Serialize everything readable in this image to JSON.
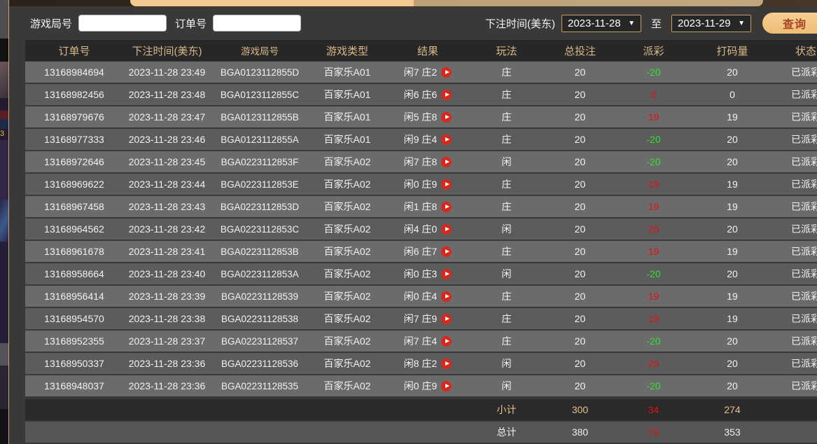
{
  "filters": {
    "game_round_label": "游戏局号",
    "game_round_value": "",
    "order_label": "订单号",
    "order_value": "",
    "bet_time_label": "下注时间(美东)",
    "date_from": "2023-11-28",
    "date_to": "2023-11-29",
    "to_label": "至",
    "query_button_label": "查询",
    "dropdown_arrow": "▼"
  },
  "table": {
    "headers": [
      "订单号",
      "下注时间(美东)",
      "游戏局号",
      "游戏类型",
      "结果",
      "玩法",
      "总投注",
      "派彩",
      "打码量",
      "状态"
    ],
    "rows": [
      {
        "order": "13168984694",
        "time": "2023-11-28 23:49",
        "round": "BGA0123112855D",
        "type": "百家乐A01",
        "result": "闲7 庄2",
        "play": "庄",
        "bet": "20",
        "payout": "-20",
        "wager": "20",
        "status": "已派彩"
      },
      {
        "order": "13168982456",
        "time": "2023-11-28 23:48",
        "round": "BGA0123112855C",
        "type": "百家乐A01",
        "result": "闲6 庄6",
        "play": "庄",
        "bet": "20",
        "payout": "0",
        "wager": "0",
        "status": "已派彩"
      },
      {
        "order": "13168979676",
        "time": "2023-11-28 23:47",
        "round": "BGA0123112855B",
        "type": "百家乐A01",
        "result": "闲5 庄8",
        "play": "庄",
        "bet": "20",
        "payout": "19",
        "wager": "19",
        "status": "已派彩"
      },
      {
        "order": "13168977333",
        "time": "2023-11-28 23:46",
        "round": "BGA0123112855A",
        "type": "百家乐A01",
        "result": "闲9 庄4",
        "play": "庄",
        "bet": "20",
        "payout": "-20",
        "wager": "20",
        "status": "已派彩"
      },
      {
        "order": "13168972646",
        "time": "2023-11-28 23:45",
        "round": "BGA0223112853F",
        "type": "百家乐A02",
        "result": "闲7 庄8",
        "play": "闲",
        "bet": "20",
        "payout": "-20",
        "wager": "20",
        "status": "已派彩"
      },
      {
        "order": "13168969622",
        "time": "2023-11-28 23:44",
        "round": "BGA0223112853E",
        "type": "百家乐A02",
        "result": "闲0 庄9",
        "play": "庄",
        "bet": "20",
        "payout": "19",
        "wager": "19",
        "status": "已派彩"
      },
      {
        "order": "13168967458",
        "time": "2023-11-28 23:43",
        "round": "BGA0223112853D",
        "type": "百家乐A02",
        "result": "闲1 庄8",
        "play": "庄",
        "bet": "20",
        "payout": "19",
        "wager": "19",
        "status": "已派彩"
      },
      {
        "order": "13168964562",
        "time": "2023-11-28 23:42",
        "round": "BGA0223112853C",
        "type": "百家乐A02",
        "result": "闲4 庄0",
        "play": "闲",
        "bet": "20",
        "payout": "20",
        "wager": "20",
        "status": "已派彩"
      },
      {
        "order": "13168961678",
        "time": "2023-11-28 23:41",
        "round": "BGA0223112853B",
        "type": "百家乐A02",
        "result": "闲6 庄7",
        "play": "庄",
        "bet": "20",
        "payout": "19",
        "wager": "19",
        "status": "已派彩"
      },
      {
        "order": "13168958664",
        "time": "2023-11-28 23:40",
        "round": "BGA0223112853A",
        "type": "百家乐A02",
        "result": "闲0 庄3",
        "play": "闲",
        "bet": "20",
        "payout": "-20",
        "wager": "20",
        "status": "已派彩"
      },
      {
        "order": "13168956414",
        "time": "2023-11-28 23:39",
        "round": "BGA02231128539",
        "type": "百家乐A02",
        "result": "闲0 庄4",
        "play": "庄",
        "bet": "20",
        "payout": "19",
        "wager": "19",
        "status": "已派彩"
      },
      {
        "order": "13168954570",
        "time": "2023-11-28 23:38",
        "round": "BGA02231128538",
        "type": "百家乐A02",
        "result": "闲7 庄9",
        "play": "庄",
        "bet": "20",
        "payout": "19",
        "wager": "19",
        "status": "已派彩"
      },
      {
        "order": "13168952355",
        "time": "2023-11-28 23:37",
        "round": "BGA02231128537",
        "type": "百家乐A02",
        "result": "闲7 庄4",
        "play": "庄",
        "bet": "20",
        "payout": "-20",
        "wager": "20",
        "status": "已派彩"
      },
      {
        "order": "13168950337",
        "time": "2023-11-28 23:36",
        "round": "BGA02231128536",
        "type": "百家乐A02",
        "result": "闲8 庄2",
        "play": "闲",
        "bet": "20",
        "payout": "20",
        "wager": "20",
        "status": "已派彩"
      },
      {
        "order": "13168948037",
        "time": "2023-11-28 23:36",
        "round": "BGA02231128535",
        "type": "百家乐A02",
        "result": "闲0 庄9",
        "play": "闲",
        "bet": "20",
        "payout": "-20",
        "wager": "20",
        "status": "已派彩"
      }
    ],
    "subtotal": {
      "label": "小计",
      "bet": "300",
      "payout": "34",
      "wager": "274"
    },
    "total": {
      "label": "总计",
      "bet": "380",
      "payout": "73",
      "wager": "353"
    }
  },
  "colors": {
    "accent_gold": "#d9b888",
    "button_gold": "#f2c587",
    "button_text": "#a84327",
    "payout_negative_green": "#35e135",
    "payout_positive_red": "#e31212",
    "row_light": "#6b6b6b",
    "row_dark": "#5c5c5c",
    "panel_bg": "#3b3938"
  }
}
